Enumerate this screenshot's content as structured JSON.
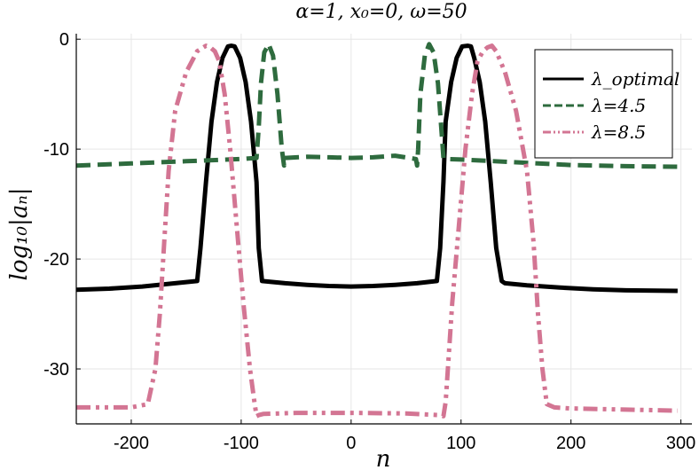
{
  "chart_data": {
    "type": "line",
    "title": "α=1, x₀=0, ω=50",
    "xlabel": "n",
    "ylabel": "log₁₀|aₙ|",
    "xlim": [
      -250,
      310
    ],
    "ylim": [
      -35,
      0.5
    ],
    "xticks": [
      -200,
      -100,
      0,
      100,
      200,
      300
    ],
    "xtick_labels": [
      "-200",
      "-100",
      "0",
      "100",
      "200",
      "300"
    ],
    "yticks": [
      0,
      -10,
      -20,
      -30
    ],
    "ytick_labels": [
      "0",
      "-10",
      "-20",
      "-30"
    ],
    "grid": true,
    "legend": "top-right",
    "series": [
      {
        "name": "λ_optimal",
        "legend_label": "λ_optimal",
        "color": "#000000",
        "style": "solid",
        "x": [
          -250,
          -220,
          -190,
          -160,
          -140,
          -137,
          -132,
          -127,
          -122,
          -117,
          -112,
          -109,
          -106,
          -101,
          -96,
          -91,
          -86,
          -84,
          -81,
          -60,
          -40,
          -20,
          0,
          20,
          40,
          60,
          78,
          81,
          84,
          86,
          91,
          96,
          101,
          106,
          109,
          112,
          117,
          122,
          127,
          132,
          137,
          140,
          160,
          190,
          220,
          250,
          297
        ],
        "y": [
          -22.8,
          -22.7,
          -22.5,
          -22.2,
          -22.0,
          -19.0,
          -13.0,
          -7.5,
          -3.9,
          -1.7,
          -0.65,
          -0.6,
          -0.65,
          -1.7,
          -3.9,
          -7.5,
          -13.0,
          -19.0,
          -22.0,
          -22.2,
          -22.35,
          -22.45,
          -22.5,
          -22.45,
          -22.35,
          -22.2,
          -22.0,
          -19.0,
          -13.0,
          -7.5,
          -3.9,
          -1.7,
          -0.65,
          -0.6,
          -0.65,
          -1.7,
          -3.9,
          -7.5,
          -13.0,
          -19.0,
          -22.0,
          -22.2,
          -22.4,
          -22.6,
          -22.75,
          -22.85,
          -22.9
        ]
      },
      {
        "name": "λ=4.5",
        "legend_label": "λ=4.5",
        "color": "#2e6b3e",
        "style": "dashed",
        "x": [
          -250,
          -200,
          -150,
          -100,
          -86,
          -84,
          -82,
          -79,
          -75,
          -71,
          -67,
          -63,
          -61,
          -60,
          -40,
          -20,
          0,
          20,
          40,
          59,
          60,
          61,
          63,
          67,
          71,
          75,
          79,
          82,
          84,
          86,
          100,
          150,
          200,
          250,
          297
        ],
        "y": [
          -11.5,
          -11.3,
          -11.1,
          -10.9,
          -10.8,
          -8.0,
          -4.0,
          -1.2,
          -0.45,
          -1.5,
          -5.0,
          -10.0,
          -11.5,
          -10.8,
          -10.7,
          -10.75,
          -10.8,
          -10.75,
          -10.6,
          -10.9,
          -11.5,
          -10.0,
          -5.0,
          -1.5,
          -0.45,
          -1.2,
          -4.0,
          -8.0,
          -10.8,
          -10.9,
          -10.95,
          -11.2,
          -11.45,
          -11.55,
          -11.6
        ]
      },
      {
        "name": "λ=8.5",
        "legend_label": "λ=8.5",
        "color": "#d37593",
        "style": "dashdotdot",
        "x": [
          -250,
          -200,
          -185,
          -178,
          -174,
          -170,
          -166,
          -160,
          -150,
          -140,
          -132,
          -128,
          -124,
          -120,
          -115,
          -110,
          -104,
          -98,
          -92,
          -88,
          -86,
          -84,
          -80,
          -50,
          0,
          50,
          80,
          84,
          86,
          88,
          92,
          98,
          104,
          110,
          115,
          120,
          124,
          128,
          132,
          140,
          150,
          160,
          166,
          170,
          174,
          178,
          185,
          200,
          250,
          297
        ],
        "y": [
          -33.5,
          -33.5,
          -33.2,
          -30.0,
          -25.0,
          -18.5,
          -12.0,
          -6.5,
          -3.0,
          -1.1,
          -0.6,
          -0.75,
          -1.1,
          -2.0,
          -5.0,
          -10.0,
          -17.0,
          -24.0,
          -30.0,
          -33.0,
          -34.3,
          -34.2,
          -34.1,
          -34.0,
          -34.0,
          -34.05,
          -34.2,
          -34.3,
          -33.0,
          -30.0,
          -24.0,
          -17.0,
          -10.0,
          -5.0,
          -2.0,
          -1.1,
          -0.75,
          -0.6,
          -1.1,
          -3.0,
          -6.5,
          -12.0,
          -18.5,
          -25.0,
          -30.0,
          -33.2,
          -33.5,
          -33.6,
          -33.7,
          -33.8
        ]
      }
    ]
  }
}
